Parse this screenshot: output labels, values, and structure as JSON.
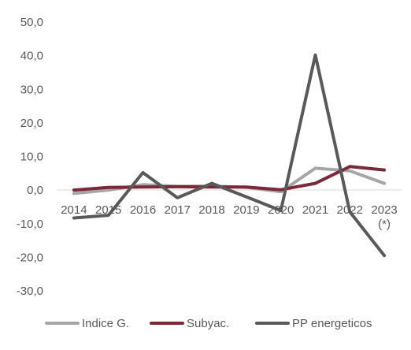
{
  "chart_data": {
    "type": "line",
    "title": "",
    "xlabel": "",
    "ylabel": "",
    "categories": [
      "2014",
      "2015",
      "2016",
      "2017",
      "2018",
      "2019",
      "2020",
      "2021",
      "2022",
      "2023\n(*)"
    ],
    "ylim": [
      -30,
      50
    ],
    "yticks": [
      "50,0",
      "40,0",
      "30,0",
      "20,0",
      "10,0",
      "0,0",
      "-10,0",
      "-20,0",
      "-30,0"
    ],
    "ytick_values": [
      50,
      40,
      30,
      20,
      10,
      0,
      -10,
      -20,
      -30
    ],
    "grid": false,
    "legend_position": "bottom",
    "series": [
      {
        "name": "Indice G.",
        "color": "#a6a6a6",
        "values": [
          -1.0,
          0.0,
          1.6,
          1.1,
          1.2,
          0.8,
          -0.5,
          6.5,
          5.7,
          2.0
        ]
      },
      {
        "name": "Subyac.",
        "color": "#7b2838",
        "values": [
          0.0,
          0.8,
          0.9,
          1.0,
          0.9,
          0.9,
          0.1,
          2.0,
          7.0,
          6.0
        ]
      },
      {
        "name": "PP energeticos",
        "color": "#595959",
        "values": [
          -8.3,
          -7.5,
          5.2,
          -2.3,
          2.0,
          -2.0,
          -6.1,
          40.2,
          -6.5,
          -19.5
        ]
      }
    ]
  }
}
